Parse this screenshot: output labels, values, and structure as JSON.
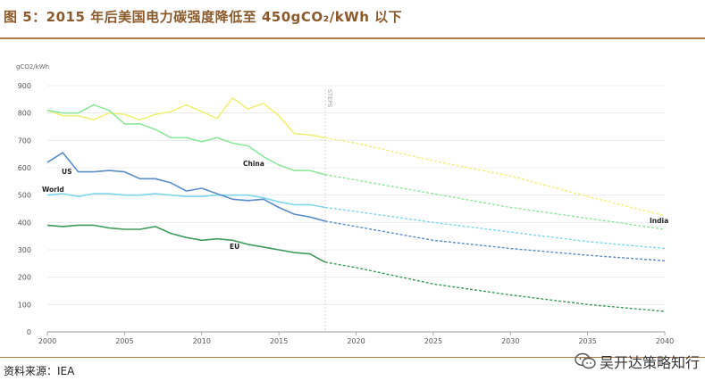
{
  "header": {
    "title": "图 5：2015 年后美国电力碳强度降低至 450gCO₂/kWh 以下"
  },
  "footer": {
    "source": "资料来源：IEA",
    "watermark": "吴开达策略知行"
  },
  "chart_data": {
    "type": "line",
    "title": "",
    "ylabel": "gCO2/kWh",
    "xlabel": "",
    "xlim": [
      2000,
      2040
    ],
    "ylim": [
      0,
      900
    ],
    "x_ticks": [
      2000,
      2005,
      2010,
      2015,
      2020,
      2025,
      2030,
      2035,
      2040
    ],
    "y_ticks": [
      0,
      100,
      200,
      300,
      400,
      500,
      600,
      700,
      800,
      900
    ],
    "projection_marker": {
      "x": 2018,
      "label": "STEPS"
    },
    "colors": {
      "India": "#f0f07a",
      "China": "#8ee89c",
      "World": "#7fd6ef",
      "US": "#5a8cc8",
      "EU": "#3d9b5a"
    },
    "series": [
      {
        "name": "India",
        "historical": {
          "x": [
            2000,
            2001,
            2002,
            2003,
            2004,
            2005,
            2006,
            2007,
            2008,
            2009,
            2010,
            2011,
            2012,
            2013,
            2014,
            2015,
            2016,
            2017,
            2018
          ],
          "values": [
            810,
            790,
            790,
            775,
            800,
            795,
            775,
            795,
            805,
            830,
            805,
            780,
            855,
            815,
            835,
            790,
            725,
            720,
            710
          ]
        },
        "projection": {
          "x": [
            2018,
            2020,
            2025,
            2030,
            2035,
            2040
          ],
          "values": [
            710,
            690,
            625,
            570,
            495,
            425
          ]
        }
      },
      {
        "name": "China",
        "historical": {
          "x": [
            2000,
            2001,
            2002,
            2003,
            2004,
            2005,
            2006,
            2007,
            2008,
            2009,
            2010,
            2011,
            2012,
            2013,
            2014,
            2015,
            2016,
            2017,
            2018
          ],
          "values": [
            810,
            800,
            800,
            830,
            810,
            760,
            760,
            740,
            710,
            710,
            695,
            710,
            690,
            680,
            640,
            610,
            590,
            590,
            575
          ]
        },
        "projection": {
          "x": [
            2018,
            2020,
            2025,
            2030,
            2035,
            2040
          ],
          "values": [
            575,
            555,
            505,
            455,
            415,
            375
          ]
        }
      },
      {
        "name": "World",
        "historical": {
          "x": [
            2000,
            2001,
            2002,
            2003,
            2004,
            2005,
            2006,
            2007,
            2008,
            2009,
            2010,
            2011,
            2012,
            2013,
            2014,
            2015,
            2016,
            2017,
            2018
          ],
          "values": [
            500,
            505,
            495,
            505,
            505,
            500,
            500,
            505,
            500,
            495,
            495,
            500,
            500,
            500,
            490,
            475,
            465,
            465,
            455
          ]
        },
        "projection": {
          "x": [
            2018,
            2020,
            2025,
            2030,
            2035,
            2040
          ],
          "values": [
            455,
            440,
            400,
            365,
            330,
            305
          ]
        }
      },
      {
        "name": "US",
        "historical": {
          "x": [
            2000,
            2001,
            2002,
            2003,
            2004,
            2005,
            2006,
            2007,
            2008,
            2009,
            2010,
            2011,
            2012,
            2013,
            2014,
            2015,
            2016,
            2017,
            2018
          ],
          "values": [
            620,
            655,
            585,
            585,
            590,
            585,
            560,
            560,
            545,
            515,
            525,
            505,
            485,
            480,
            485,
            455,
            430,
            420,
            405
          ]
        },
        "projection": {
          "x": [
            2018,
            2020,
            2025,
            2030,
            2035,
            2040
          ],
          "values": [
            405,
            385,
            335,
            305,
            280,
            260
          ]
        }
      },
      {
        "name": "EU",
        "historical": {
          "x": [
            2000,
            2001,
            2002,
            2003,
            2004,
            2005,
            2006,
            2007,
            2008,
            2009,
            2010,
            2011,
            2012,
            2013,
            2014,
            2015,
            2016,
            2017,
            2018
          ],
          "values": [
            390,
            385,
            390,
            390,
            380,
            375,
            375,
            385,
            360,
            345,
            335,
            340,
            335,
            320,
            310,
            300,
            290,
            285,
            255
          ]
        },
        "projection": {
          "x": [
            2018,
            2020,
            2025,
            2030,
            2035,
            2040
          ],
          "values": [
            255,
            235,
            175,
            135,
            100,
            75
          ]
        }
      }
    ]
  }
}
